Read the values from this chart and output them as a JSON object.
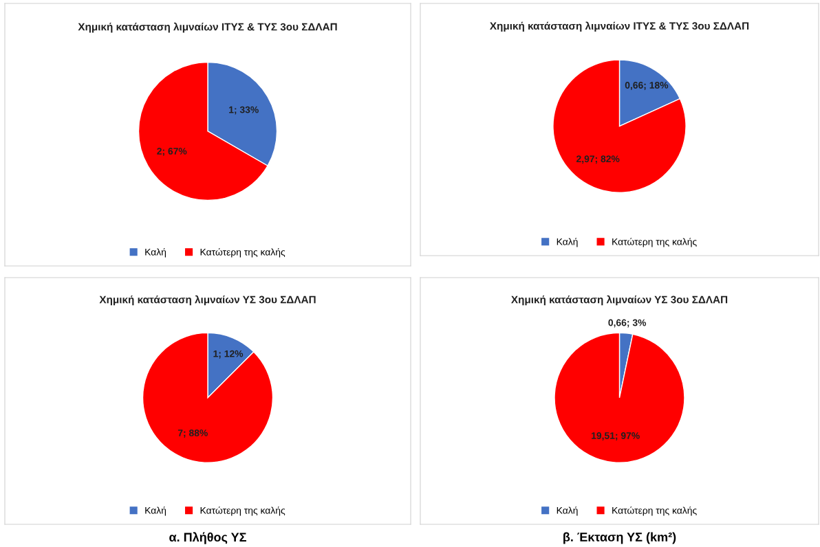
{
  "chart_data": [
    {
      "type": "pie",
      "title": "Χημική κατάσταση λιμναίων ΙΤΥΣ & ΤΥΣ 3ου ΣΔΛΑΠ",
      "categories": [
        "Καλή",
        "Κατώτερη της καλής"
      ],
      "values": [
        1,
        2
      ],
      "colors": [
        "#4472c4",
        "#ff0000"
      ],
      "value_labels": [
        "1; 33%",
        "2; 67%"
      ],
      "legend": "bottom"
    },
    {
      "type": "pie",
      "title": "Χημική κατάσταση λιμναίων ΙΤΥΣ & ΤΥΣ 3ου ΣΔΛΑΠ",
      "categories": [
        "Καλή",
        "Κατώτερη της καλής"
      ],
      "values": [
        0.66,
        2.97
      ],
      "colors": [
        "#4472c4",
        "#ff0000"
      ],
      "value_labels": [
        "0,66; 18%",
        "2,97; 82%"
      ],
      "legend": "bottom"
    },
    {
      "type": "pie",
      "title": "Χημική κατάσταση λιμναίων ΥΣ 3ου ΣΔΛΑΠ",
      "categories": [
        "Καλή",
        "Κατώτερη της καλής"
      ],
      "values": [
        1,
        7
      ],
      "colors": [
        "#4472c4",
        "#ff0000"
      ],
      "value_labels": [
        "1; 12%",
        "7; 88%"
      ],
      "legend": "bottom",
      "annotations": [
        "α. Πλήθος ΥΣ"
      ]
    },
    {
      "type": "pie",
      "title": "Χημική κατάσταση λιμναίων ΥΣ 3ου ΣΔΛΑΠ",
      "categories": [
        "Καλή",
        "Κατώτερη της καλής"
      ],
      "values": [
        0.66,
        19.51
      ],
      "colors": [
        "#4472c4",
        "#ff0000"
      ],
      "value_labels": [
        "0,66; 3%",
        "19,51; 97%"
      ],
      "legend": "bottom",
      "annotations": [
        "β. Έκταση ΥΣ (km²)"
      ]
    }
  ]
}
